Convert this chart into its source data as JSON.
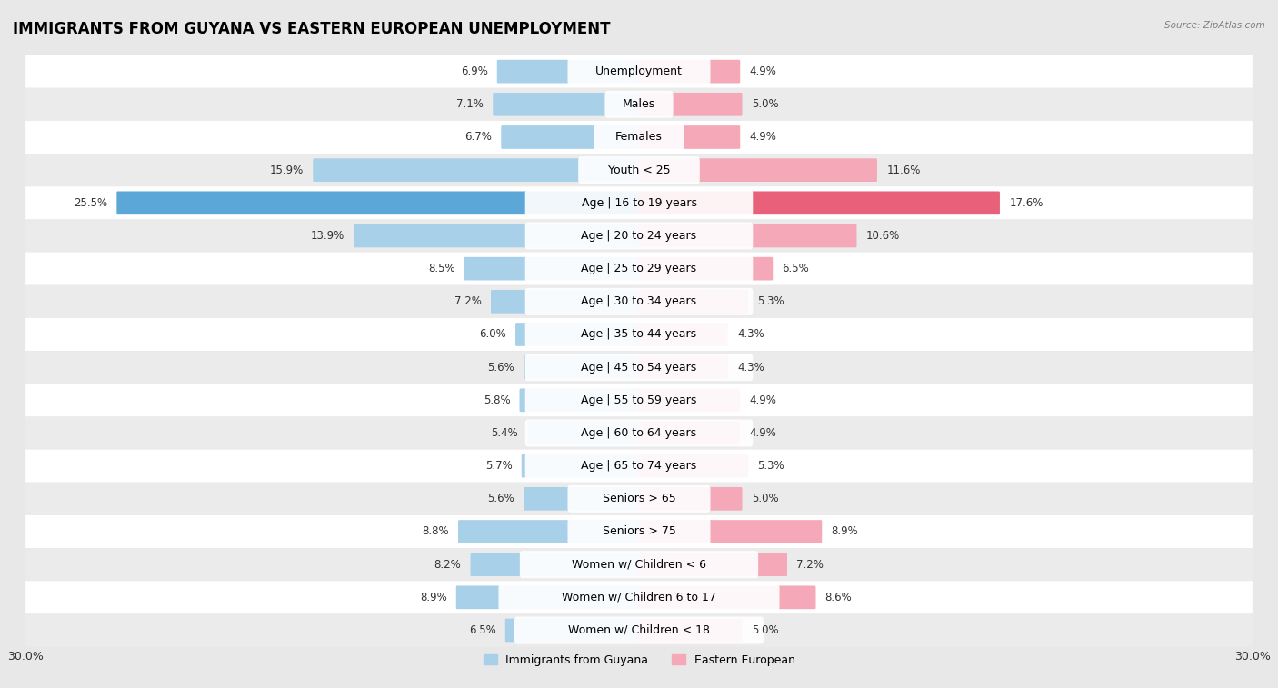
{
  "title": "IMMIGRANTS FROM GUYANA VS EASTERN EUROPEAN UNEMPLOYMENT",
  "source": "Source: ZipAtlas.com",
  "categories": [
    "Unemployment",
    "Males",
    "Females",
    "Youth < 25",
    "Age | 16 to 19 years",
    "Age | 20 to 24 years",
    "Age | 25 to 29 years",
    "Age | 30 to 34 years",
    "Age | 35 to 44 years",
    "Age | 45 to 54 years",
    "Age | 55 to 59 years",
    "Age | 60 to 64 years",
    "Age | 65 to 74 years",
    "Seniors > 65",
    "Seniors > 75",
    "Women w/ Children < 6",
    "Women w/ Children 6 to 17",
    "Women w/ Children < 18"
  ],
  "left_values": [
    6.9,
    7.1,
    6.7,
    15.9,
    25.5,
    13.9,
    8.5,
    7.2,
    6.0,
    5.6,
    5.8,
    5.4,
    5.7,
    5.6,
    8.8,
    8.2,
    8.9,
    6.5
  ],
  "right_values": [
    4.9,
    5.0,
    4.9,
    11.6,
    17.6,
    10.6,
    6.5,
    5.3,
    4.3,
    4.3,
    4.9,
    4.9,
    5.3,
    5.0,
    8.9,
    7.2,
    8.6,
    5.0
  ],
  "left_color": "#A8D0E8",
  "right_color": "#F4A8B8",
  "highlight_left_color": "#5BA8D8",
  "highlight_right_color": "#E8607A",
  "highlight_row": 4,
  "xlim": 30.0,
  "row_bg_even": "#f5f5f5",
  "row_bg_odd": "#e8e8e8",
  "title_fontsize": 12,
  "label_fontsize": 9,
  "tick_fontsize": 9,
  "value_fontsize": 8.5,
  "legend_labels": [
    "Immigrants from Guyana",
    "Eastern European"
  ]
}
